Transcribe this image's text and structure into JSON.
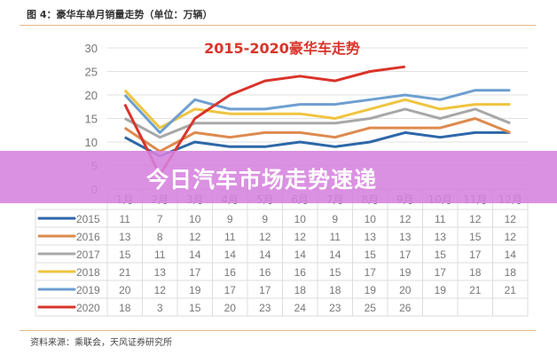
{
  "figure_title": "图 4：豪华车单月销量走势（单位：万辆）",
  "source": "资料来源：乘联会，天风证券研究所",
  "banner": "今日汽车市场走势速递",
  "chart_data": {
    "type": "line",
    "title": "2015-2020豪华车走势",
    "title_color": "#d9342b",
    "categories": [
      "1月",
      "2月",
      "3月",
      "4月",
      "5月",
      "6月",
      "7月",
      "8月",
      "9月",
      "10月",
      "11月",
      "12月"
    ],
    "ylim": [
      0,
      30
    ],
    "yticks": [
      "0",
      "5",
      "10",
      "15",
      "20",
      "25",
      "30"
    ],
    "grid": true,
    "legend": "data-table-below",
    "series": [
      {
        "name": "2015",
        "color": "#2e67a8",
        "values": [
          11,
          7,
          10,
          9,
          9,
          10,
          9,
          10,
          12,
          11,
          12,
          12
        ]
      },
      {
        "name": "2016",
        "color": "#dd8a4e",
        "values": [
          13,
          8,
          12,
          11,
          12,
          12,
          11,
          13,
          13,
          13,
          15,
          12
        ]
      },
      {
        "name": "2017",
        "color": "#a8a8a8",
        "values": [
          15,
          11,
          14,
          14,
          14,
          14,
          14,
          15,
          17,
          15,
          17,
          14
        ]
      },
      {
        "name": "2018",
        "color": "#efc440",
        "values": [
          21,
          13,
          17,
          16,
          16,
          16,
          15,
          17,
          19,
          17,
          18,
          18
        ]
      },
      {
        "name": "2019",
        "color": "#6e9fd0",
        "values": [
          20,
          12,
          19,
          17,
          17,
          18,
          18,
          19,
          20,
          19,
          21,
          21
        ]
      },
      {
        "name": "2020",
        "color": "#d9342b",
        "values": [
          18,
          3,
          15,
          20,
          23,
          24,
          23,
          25,
          26,
          null,
          null,
          null
        ]
      }
    ]
  }
}
